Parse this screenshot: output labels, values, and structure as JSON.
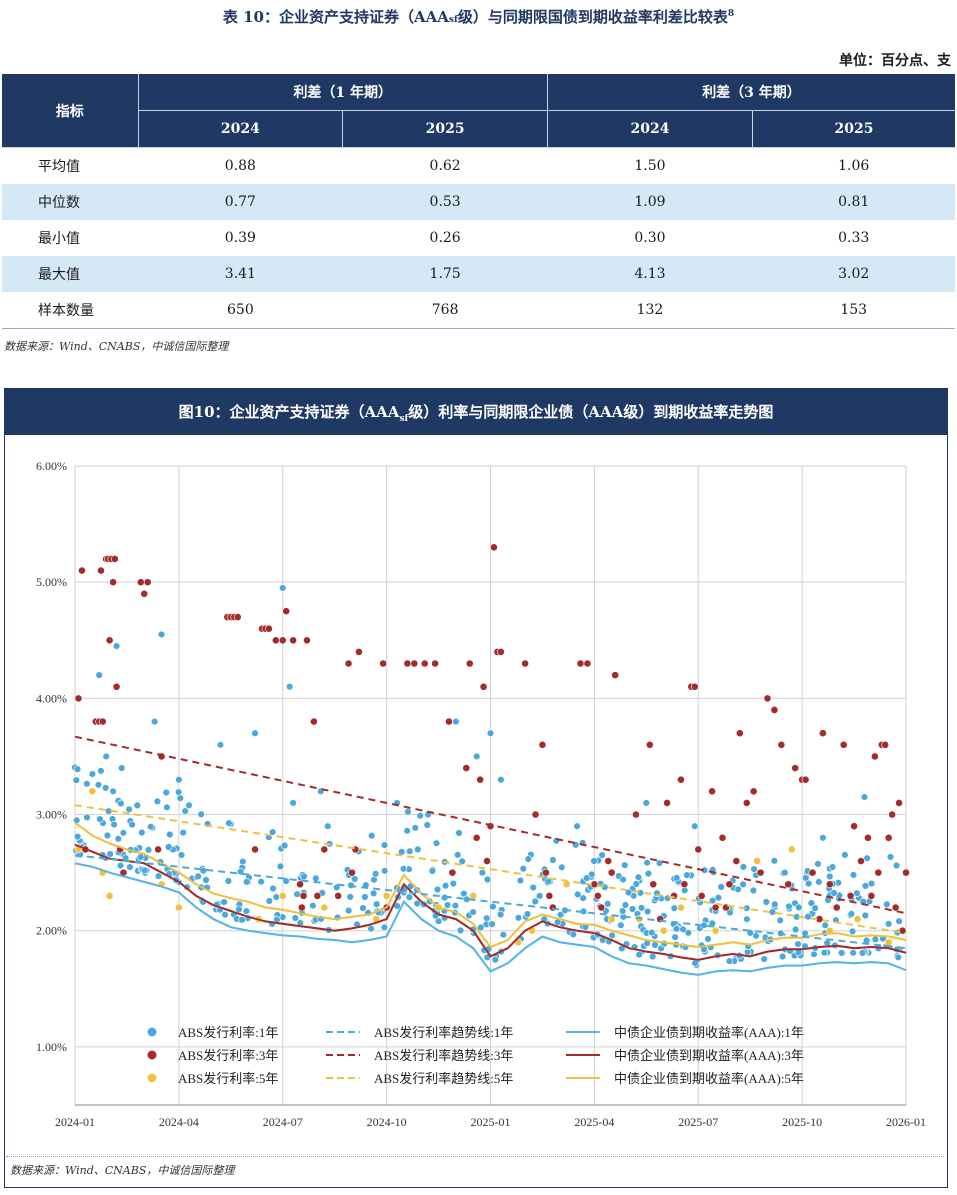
{
  "table": {
    "title_prefix": "表 10：企业资产支持证券（AAA",
    "title_sub": "sf",
    "title_suffix": "级）与同期限国债到期收益率利差比较表",
    "title_note": "8",
    "unit": "单位：百分点、支",
    "header_indicator": "指标",
    "group_1y": "利差（1 年期）",
    "group_3y": "利差（3 年期）",
    "years": [
      "2024",
      "2025",
      "2024",
      "2025"
    ],
    "rows": [
      {
        "label": "平均值",
        "values": [
          "0.88",
          "0.62",
          "1.50",
          "1.06"
        ]
      },
      {
        "label": "中位数",
        "values": [
          "0.77",
          "0.53",
          "1.09",
          "0.81"
        ]
      },
      {
        "label": "最小值",
        "values": [
          "0.39",
          "0.26",
          "0.30",
          "0.33"
        ]
      },
      {
        "label": "最大值",
        "values": [
          "3.41",
          "1.75",
          "4.13",
          "3.02"
        ]
      },
      {
        "label": "样本数量",
        "values": [
          "650",
          "768",
          "132",
          "153"
        ]
      }
    ],
    "source": "数据来源：Wind、CNABS，中诚信国际整理"
  },
  "figure": {
    "title_prefix": "图10：企业资产支持证券（AAA",
    "title_sub": "sf",
    "title_suffix": "级）利率与同期限企业债（AAA级）到期收益率走势图",
    "source": "数据来源：Wind、CNABS，中诚信国际整理"
  },
  "colors": {
    "navy": "#1f3864",
    "abs_1y": "#4aa8dc",
    "abs_3y": "#a52a2a",
    "abs_5y": "#f0c040",
    "band_1y": "#56b4e6",
    "band_3y": "#a52a2a",
    "band_5y": "#f0c040"
  },
  "chart_data": {
    "type": "scatter",
    "title": "图10：企业资产支持证券（AAAsf级）利率与同期限企业债（AAA级）到期收益率走势图",
    "xlabel": "",
    "ylabel": "",
    "ylim": [
      0.5,
      6.0
    ],
    "yticks": [
      1.0,
      2.0,
      3.0,
      4.0,
      5.0,
      6.0
    ],
    "ytick_labels": [
      "1.00%",
      "2.00%",
      "3.00%",
      "4.00%",
      "5.00%",
      "6.00%"
    ],
    "x_unit": "months since 2024-01",
    "xlim": [
      0,
      24
    ],
    "xticks": [
      0,
      3,
      6,
      9,
      12,
      15,
      18,
      21,
      24
    ],
    "xtick_labels": [
      "2024-01",
      "2024-04",
      "2024-07",
      "2024-10",
      "2025-01",
      "2025-04",
      "2025-07",
      "2025-10",
      "2026-01"
    ],
    "grid": true,
    "legend_position": "bottom-inside",
    "legend": [
      {
        "key": "scatter_1y",
        "label": "ABS发行利率:1年"
      },
      {
        "key": "scatter_3y",
        "label": "ABS发行利率:3年"
      },
      {
        "key": "scatter_5y",
        "label": "ABS发行利率:5年"
      },
      {
        "key": "trend_1y",
        "label": "ABS发行利率趋势线:1年"
      },
      {
        "key": "trend_3y",
        "label": "ABS发行利率趋势线:3年"
      },
      {
        "key": "trend_5y",
        "label": "ABS发行利率趋势线:5年"
      },
      {
        "key": "bond_1y",
        "label": "中债企业债到期收益率(AAA):1年"
      },
      {
        "key": "bond_3y",
        "label": "中债企业债到期收益率(AAA):3年"
      },
      {
        "key": "bond_5y",
        "label": "中债企业债到期收益率(AAA):5年"
      }
    ],
    "trend_lines": [
      {
        "name": "ABS发行利率趋势线:1年",
        "x": [
          0,
          24
        ],
        "y": [
          2.65,
          1.85
        ]
      },
      {
        "name": "ABS发行利率趋势线:3年",
        "x": [
          0,
          24
        ],
        "y": [
          3.67,
          2.15
        ]
      },
      {
        "name": "ABS发行利率趋势线:5年",
        "x": [
          0,
          24
        ],
        "y": [
          3.08,
          1.98
        ]
      }
    ],
    "yield_series": [
      {
        "name": "中债企业债到期收益率(AAA):1年",
        "x": [
          0,
          0.5,
          1,
          1.5,
          2,
          2.5,
          3,
          3.5,
          4,
          4.5,
          5,
          5.5,
          6,
          6.5,
          7,
          7.5,
          8,
          8.5,
          9,
          9.5,
          10,
          10.5,
          11,
          11.5,
          12,
          12.5,
          13,
          13.5,
          14,
          14.5,
          15,
          15.5,
          16,
          16.5,
          17,
          17.5,
          18,
          18.5,
          19,
          19.5,
          20,
          20.5,
          21,
          21.5,
          22,
          22.5,
          23,
          23.5,
          24
        ],
        "y": [
          2.58,
          2.55,
          2.5,
          2.46,
          2.42,
          2.38,
          2.33,
          2.2,
          2.1,
          2.03,
          2.0,
          1.98,
          1.96,
          1.95,
          1.93,
          1.92,
          1.9,
          1.92,
          1.95,
          2.25,
          2.1,
          2.0,
          1.95,
          1.85,
          1.65,
          1.72,
          1.85,
          1.95,
          1.9,
          1.88,
          1.86,
          1.78,
          1.72,
          1.7,
          1.67,
          1.64,
          1.62,
          1.65,
          1.66,
          1.65,
          1.68,
          1.7,
          1.7,
          1.72,
          1.73,
          1.72,
          1.73,
          1.72,
          1.66
        ]
      },
      {
        "name": "中债企业债到期收益率(AAA):3年",
        "x": [
          0,
          0.5,
          1,
          1.5,
          2,
          2.5,
          3,
          3.5,
          4,
          4.5,
          5,
          5.5,
          6,
          6.5,
          7,
          7.5,
          8,
          8.5,
          9,
          9.5,
          10,
          10.5,
          11,
          11.5,
          12,
          12.5,
          13,
          13.5,
          14,
          14.5,
          15,
          15.5,
          16,
          16.5,
          17,
          17.5,
          18,
          18.5,
          19,
          19.5,
          20,
          20.5,
          21,
          21.5,
          22,
          22.5,
          23,
          23.5,
          24
        ],
        "y": [
          2.74,
          2.68,
          2.62,
          2.6,
          2.58,
          2.5,
          2.42,
          2.3,
          2.22,
          2.17,
          2.12,
          2.08,
          2.06,
          2.04,
          2.02,
          2.0,
          2.02,
          2.05,
          2.1,
          2.4,
          2.25,
          2.14,
          2.1,
          2.0,
          1.78,
          1.85,
          2.0,
          2.08,
          2.03,
          2.0,
          1.98,
          1.92,
          1.85,
          1.82,
          1.8,
          1.77,
          1.75,
          1.78,
          1.8,
          1.78,
          1.82,
          1.84,
          1.84,
          1.86,
          1.87,
          1.85,
          1.86,
          1.85,
          1.81
        ]
      },
      {
        "name": "中债企业债到期收益率(AAA):5年",
        "x": [
          0,
          0.5,
          1,
          1.5,
          2,
          2.5,
          3,
          3.5,
          4,
          4.5,
          5,
          5.5,
          6,
          6.5,
          7,
          7.5,
          8,
          8.5,
          9,
          9.5,
          10,
          10.5,
          11,
          11.5,
          12,
          12.5,
          13,
          13.5,
          14,
          14.5,
          15,
          15.5,
          16,
          16.5,
          17,
          17.5,
          18,
          18.5,
          19,
          19.5,
          20,
          20.5,
          21,
          21.5,
          22,
          22.5,
          23,
          23.5,
          24
        ],
        "y": [
          2.93,
          2.82,
          2.75,
          2.7,
          2.66,
          2.58,
          2.5,
          2.4,
          2.32,
          2.28,
          2.25,
          2.2,
          2.18,
          2.15,
          2.12,
          2.1,
          2.12,
          2.14,
          2.2,
          2.48,
          2.32,
          2.2,
          2.16,
          2.06,
          1.86,
          1.92,
          2.08,
          2.14,
          2.1,
          2.06,
          2.05,
          2.0,
          1.96,
          1.92,
          1.9,
          1.88,
          1.86,
          1.88,
          1.9,
          1.88,
          1.92,
          1.94,
          1.94,
          1.97,
          1.98,
          1.95,
          1.96,
          1.95,
          1.92
        ]
      }
    ],
    "scatter_3y": {
      "name": "ABS发行利率:3年",
      "x": [
        0.1,
        0.2,
        0.3,
        0.6,
        0.7,
        0.75,
        0.8,
        0.9,
        0.95,
        1.0,
        1.05,
        1.1,
        1.15,
        1.2,
        1.3,
        1.4,
        1.9,
        2.0,
        2.1,
        2.4,
        2.5,
        4.4,
        4.5,
        4.6,
        4.7,
        5.2,
        5.4,
        5.5,
        5.6,
        5.8,
        6.0,
        6.1,
        6.3,
        6.5,
        6.55,
        6.6,
        6.7,
        6.9,
        7.0,
        7.2,
        7.6,
        7.9,
        8.0,
        8.1,
        8.2,
        8.9,
        9.0,
        9.6,
        9.8,
        10.1,
        10.4,
        10.8,
        10.9,
        11.3,
        11.4,
        11.6,
        11.7,
        11.8,
        11.9,
        12.0,
        12.1,
        12.2,
        12.3,
        13.0,
        13.3,
        13.5,
        13.6,
        13.7,
        13.8,
        14.6,
        14.8,
        15.0,
        15.1,
        15.2,
        15.4,
        15.5,
        15.6,
        16.2,
        16.6,
        16.7,
        16.9,
        17.1,
        17.3,
        17.5,
        17.6,
        17.8,
        17.9,
        18.0,
        18.1,
        18.4,
        18.5,
        18.7,
        18.8,
        18.9,
        19.1,
        19.2,
        19.4,
        19.6,
        19.8,
        20.0,
        20.2,
        20.4,
        20.6,
        20.8,
        21.0,
        21.1,
        21.3,
        21.5,
        21.6,
        21.8,
        22.0,
        22.2,
        22.4,
        22.5,
        22.7,
        22.9,
        23.0,
        23.1,
        23.2,
        23.3,
        23.4,
        23.5,
        23.6,
        23.7,
        23.8,
        23.9,
        24.0
      ],
      "y": [
        4.0,
        5.1,
        2.7,
        3.8,
        3.8,
        5.1,
        3.8,
        5.2,
        5.2,
        4.5,
        5.2,
        5.0,
        5.2,
        4.1,
        2.7,
        2.5,
        5.0,
        4.9,
        5.0,
        2.7,
        3.5,
        4.7,
        4.7,
        4.7,
        4.7,
        2.7,
        4.6,
        4.6,
        4.6,
        4.5,
        4.5,
        4.75,
        4.5,
        2.4,
        2.2,
        2.3,
        4.5,
        3.8,
        2.3,
        2.7,
        2.3,
        4.3,
        2.5,
        2.7,
        4.4,
        4.3,
        2.2,
        4.3,
        4.3,
        4.3,
        4.3,
        3.8,
        2.5,
        3.4,
        4.3,
        2.8,
        3.3,
        4.1,
        2.6,
        2.9,
        5.3,
        4.4,
        4.4,
        4.3,
        3.0,
        3.6,
        2.5,
        2.3,
        2.2,
        4.3,
        4.3,
        2.4,
        2.3,
        2.2,
        2.6,
        2.5,
        4.2,
        3.0,
        3.6,
        2.4,
        2.1,
        3.1,
        2.3,
        3.3,
        2.4,
        4.1,
        4.1,
        2.7,
        2.3,
        3.2,
        2.2,
        2.8,
        2.2,
        2.4,
        2.6,
        3.7,
        3.1,
        3.2,
        2.5,
        4.0,
        3.9,
        3.6,
        2.4,
        3.4,
        3.3,
        3.3,
        2.5,
        2.1,
        3.7,
        2.4,
        2.2,
        3.6,
        2.3,
        2.9,
        2.6,
        2.8,
        2.3,
        3.5,
        2.5,
        3.6,
        3.6,
        2.8,
        3.0,
        2.2,
        3.1,
        2.0,
        2.5
      ]
    },
    "scatter_5y": {
      "name": "ABS发行利率:5年",
      "x": [
        0.1,
        0.5,
        0.8,
        1.0,
        1.4,
        2.5,
        3.0,
        5.3,
        6.0,
        7.2,
        8.7,
        9.0,
        10.5,
        11.5,
        12.8,
        13.2,
        14.2,
        15.5,
        16.3,
        17.0,
        17.5,
        18.5,
        19.7,
        20.7,
        21.8,
        22.6,
        23.5
      ],
      "y": [
        2.7,
        3.2,
        2.5,
        2.3,
        2.5,
        2.4,
        2.2,
        2.1,
        2.3,
        2.2,
        2.1,
        2.3,
        2.2,
        2.3,
        1.9,
        2.0,
        2.4,
        2.1,
        2.1,
        2.0,
        2.2,
        2.0,
        2.6,
        2.7,
        2.0,
        2.1,
        1.9
      ]
    },
    "scatter_1y": {
      "name": "ABS发行利率:1年",
      "count": 500,
      "note": "dense cloud of 1-year issuance rates; generated deterministically around the trend, plus notable outliers",
      "outliers_x": [
        0.7,
        0.9,
        1.1,
        1.2,
        1.35,
        2.3,
        2.5,
        3.0,
        4.2,
        5.2,
        6.0,
        6.2,
        6.3,
        7.1,
        7.3,
        9.3,
        9.9,
        10.2,
        11.0,
        11.6,
        12.0,
        12.3,
        14.5,
        16.5,
        17.9,
        19.1,
        20.5,
        21.6,
        22.8
      ],
      "outliers_y": [
        4.2,
        3.5,
        3.2,
        4.45,
        3.4,
        3.8,
        4.55,
        3.3,
        3.6,
        3.7,
        4.95,
        4.1,
        3.1,
        3.2,
        2.9,
        3.1,
        2.7,
        3.0,
        3.8,
        3.5,
        3.7,
        3.3,
        2.9,
        3.1,
        2.9,
        2.6,
        2.5,
        2.8,
        3.15
      ]
    }
  }
}
